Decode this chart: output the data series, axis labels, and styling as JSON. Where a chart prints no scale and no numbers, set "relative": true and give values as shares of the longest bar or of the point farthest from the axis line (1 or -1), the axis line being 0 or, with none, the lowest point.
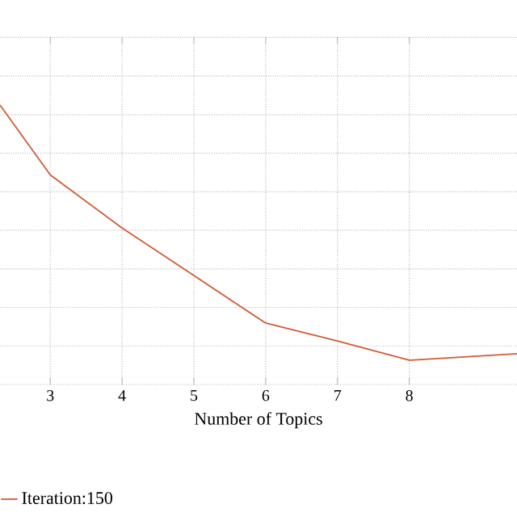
{
  "chart_data": {
    "type": "line",
    "xlabel": "Number of Topics",
    "x": [
      2.3,
      3,
      4,
      5,
      6,
      7,
      8,
      9.5
    ],
    "xlim": [
      2.3,
      9.5
    ],
    "xticks": [
      3,
      4,
      5,
      6,
      7,
      8
    ],
    "relative": true,
    "grid": true,
    "legend": "bottom",
    "line_style": "solid",
    "marker": "none",
    "series": [
      {
        "name": "Iteration:150",
        "color": "#d35a35",
        "values": [
          1,
          0.75,
          0.56,
          0.39,
          0.22,
          0.156,
          0.087,
          0.11
        ]
      }
    ]
  }
}
